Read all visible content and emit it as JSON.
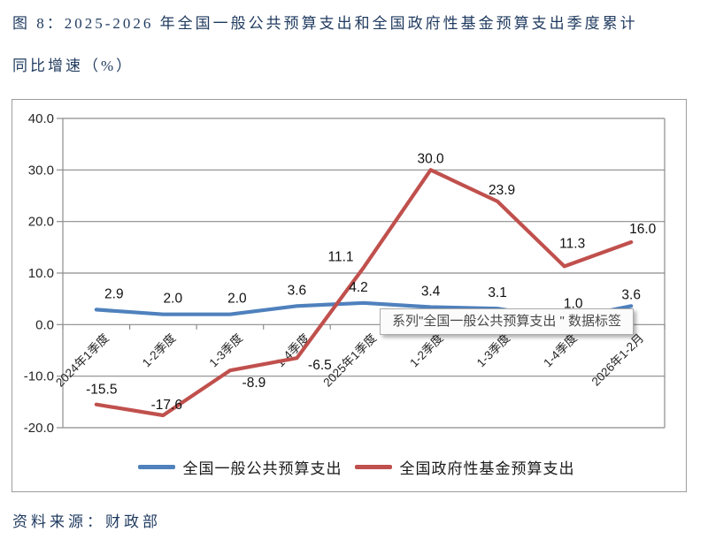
{
  "figure_title": {
    "line1": "图 8：2025-2026 年全国一般公共预算支出和全国政府性基金预算支出季度累计",
    "line2": "同比增速（%）"
  },
  "source_note": "资料来源：财政部",
  "tooltip": {
    "text": "系列\"全国一般公共预算支出 \" 数据标签"
  },
  "chart_data": {
    "type": "line",
    "title": "",
    "xlabel": "",
    "ylabel": "",
    "categories": [
      "2024年1季度",
      "1-2季度",
      "1-3季度",
      "1-4季度",
      "2025年1季度",
      "1-2季度",
      "1-3季度",
      "1-4季度",
      "2026年1-2月"
    ],
    "series": [
      {
        "name": "全国一般公共预算支出",
        "color": "#4F81BD",
        "values": [
          2.9,
          2.0,
          2.0,
          3.6,
          4.2,
          3.4,
          3.1,
          1.0,
          3.6
        ]
      },
      {
        "name": "全国政府性基金预算支出",
        "color": "#C0504D",
        "values": [
          -15.5,
          -17.6,
          -8.9,
          -6.5,
          11.1,
          30.0,
          23.9,
          11.3,
          16.0
        ]
      }
    ],
    "ylim": [
      -20,
      40
    ],
    "ytick_step": 10,
    "ytick_labels": [
      "40.0",
      "30.0",
      "20.0",
      "10.0",
      "0.0",
      "-10.0",
      "-20.0"
    ],
    "grid": true,
    "data_labels": true,
    "legend_position": "bottom",
    "gridline_color": "#8c8c8c"
  }
}
